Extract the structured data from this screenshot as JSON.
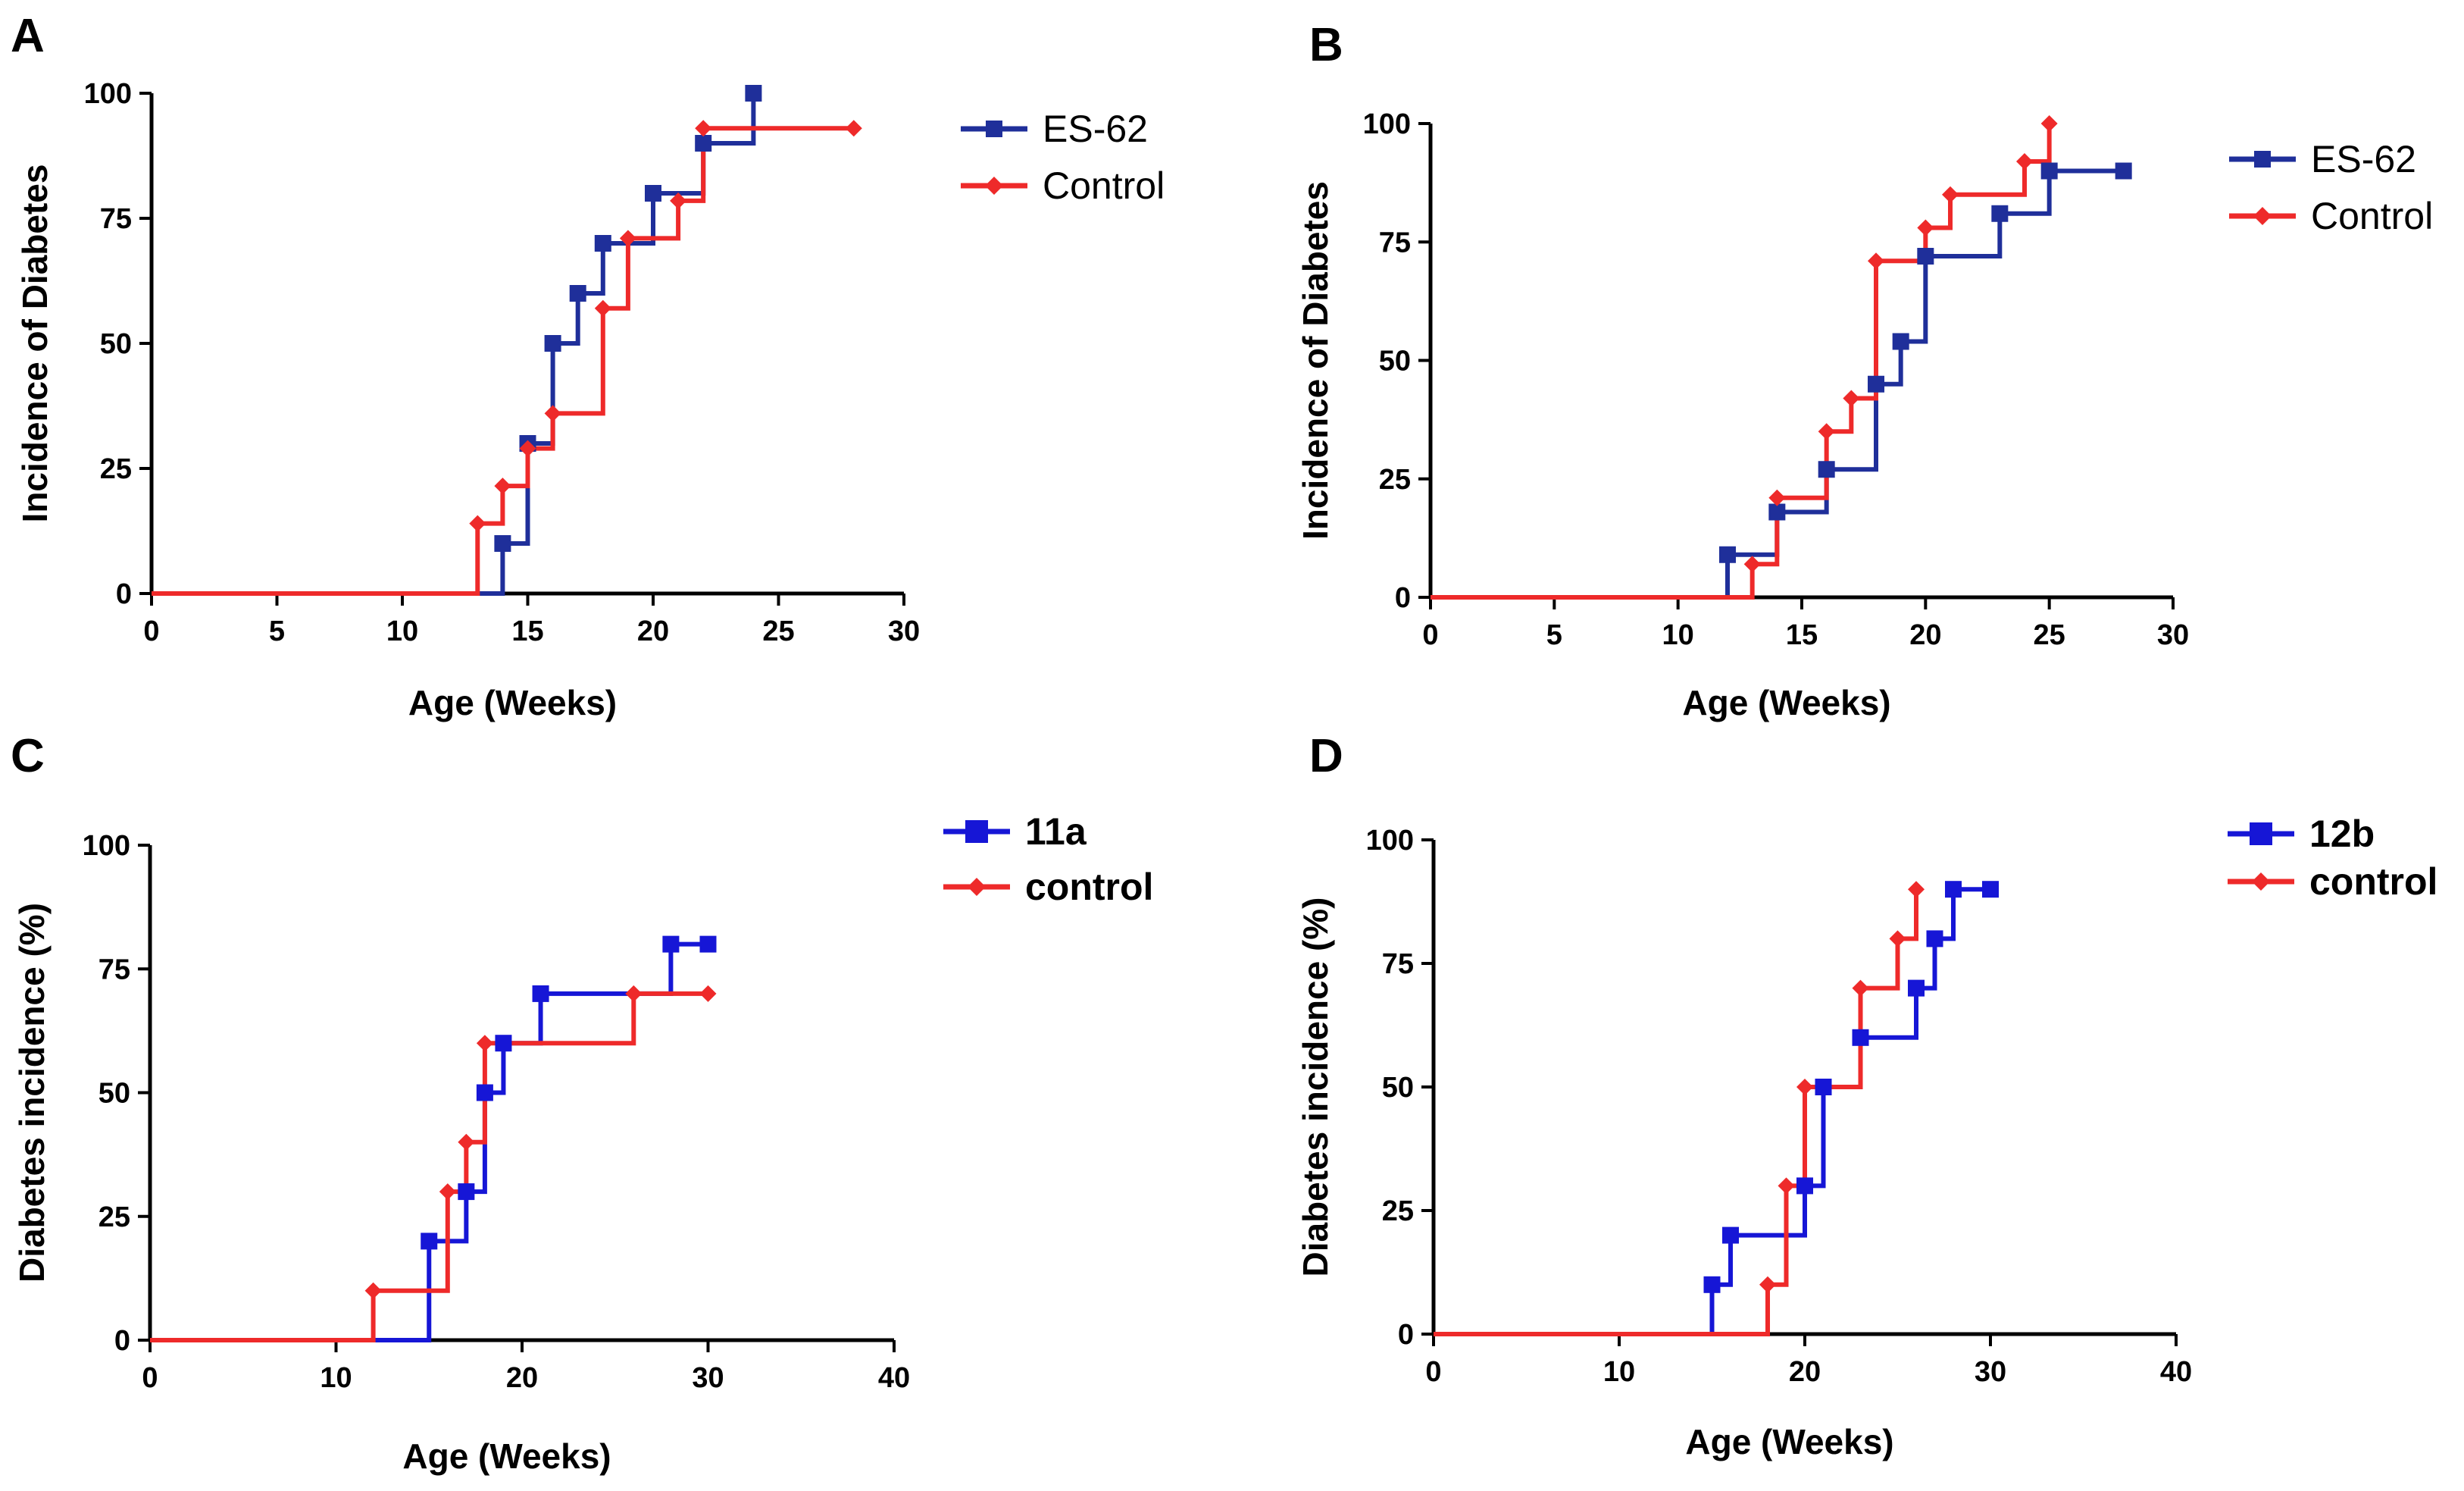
{
  "chart_data": [
    {
      "panel": "A",
      "type": "line",
      "style": "step",
      "xlabel": "Age (Weeks)",
      "ylabel": "Incidence of Diabetes",
      "xlim": [
        0,
        30
      ],
      "ylim": [
        0,
        100
      ],
      "xticks": [
        0,
        5,
        10,
        15,
        20,
        25,
        30
      ],
      "yticks": [
        0,
        25,
        50,
        75,
        100
      ],
      "legend_placement": "top-right",
      "legend_bold": false,
      "series": [
        {
          "name": "ES-62",
          "color": "#1f2f9a",
          "marker": "square",
          "x": [
            14,
            15,
            16,
            17,
            18,
            20,
            22,
            24
          ],
          "y": [
            10,
            30,
            50,
            60,
            70,
            80,
            90,
            100
          ]
        },
        {
          "name": "Control",
          "color": "#ee2a2a",
          "marker": "diamond",
          "x": [
            13,
            14,
            15,
            16,
            18,
            19,
            21,
            22,
            28
          ],
          "y": [
            14,
            21.5,
            29,
            36,
            57,
            71,
            78.5,
            93,
            93
          ]
        }
      ]
    },
    {
      "panel": "B",
      "type": "line",
      "style": "step",
      "xlabel": "Age (Weeks)",
      "ylabel": "Incidence of Diabetes",
      "xlim": [
        0,
        30
      ],
      "ylim": [
        0,
        100
      ],
      "xticks": [
        0,
        5,
        10,
        15,
        20,
        25,
        30
      ],
      "yticks": [
        0,
        25,
        50,
        75,
        100
      ],
      "legend_placement": "top-right",
      "legend_bold": false,
      "series": [
        {
          "name": "ES-62",
          "color": "#1f2f9a",
          "marker": "square",
          "x": [
            12,
            14,
            16,
            18,
            19,
            20,
            23,
            25,
            28
          ],
          "y": [
            9,
            18,
            27,
            45,
            54,
            72,
            81,
            90,
            90
          ]
        },
        {
          "name": "Control",
          "color": "#ee2a2a",
          "marker": "diamond",
          "x": [
            13,
            14,
            16,
            17,
            18,
            20,
            21,
            24,
            25
          ],
          "y": [
            7,
            21,
            35,
            42,
            71,
            78,
            85,
            92,
            100
          ]
        }
      ]
    },
    {
      "panel": "C",
      "type": "line",
      "style": "step",
      "xlabel": "Age (Weeks)",
      "ylabel": "Diabetes incidence (%)",
      "xlim": [
        0,
        40
      ],
      "ylim": [
        0,
        100
      ],
      "xticks": [
        0,
        10,
        20,
        30,
        40
      ],
      "yticks": [
        0,
        25,
        50,
        75,
        100
      ],
      "legend_placement": "top-right",
      "legend_bold": true,
      "series": [
        {
          "name": "11a",
          "color": "#1616d6",
          "marker": "square",
          "x": [
            15,
            17,
            18,
            19,
            21,
            28,
            30
          ],
          "y": [
            20,
            30,
            50,
            60,
            70,
            80,
            80
          ]
        },
        {
          "name": "control",
          "color": "#ee2a2a",
          "marker": "diamond",
          "x": [
            12,
            16,
            17,
            18,
            26,
            30
          ],
          "y": [
            10,
            30,
            40,
            60,
            70,
            70
          ]
        }
      ]
    },
    {
      "panel": "D",
      "type": "line",
      "style": "step",
      "xlabel": "Age (Weeks)",
      "ylabel": "Diabetes incidence (%)",
      "xlim": [
        0,
        40
      ],
      "ylim": [
        0,
        100
      ],
      "xticks": [
        0,
        10,
        20,
        30,
        40
      ],
      "yticks": [
        0,
        25,
        50,
        75,
        100
      ],
      "legend_placement": "top-right",
      "legend_bold": true,
      "series": [
        {
          "name": "12b",
          "color": "#1616d6",
          "marker": "square",
          "x": [
            15,
            16,
            20,
            21,
            23,
            26,
            27,
            28,
            30
          ],
          "y": [
            10,
            20,
            30,
            50,
            60,
            70,
            80,
            90,
            90
          ]
        },
        {
          "name": "control",
          "color": "#ee2a2a",
          "marker": "diamond",
          "x": [
            18,
            19,
            20,
            23,
            25,
            26
          ],
          "y": [
            10,
            30,
            50,
            70,
            80,
            90
          ]
        }
      ]
    }
  ]
}
